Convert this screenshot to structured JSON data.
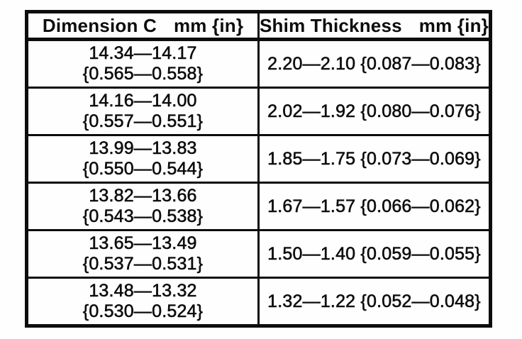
{
  "page": {
    "background": "#fefefe",
    "text_color": "#0d0d0d",
    "border_color": "#0d0d0d"
  },
  "table": {
    "headers": [
      {
        "label": "Dimension C",
        "unit": "mm {in}"
      },
      {
        "label": "Shim Thickness",
        "unit": "mm {in}"
      }
    ],
    "rows": [
      {
        "dimension_mm": "14.34—14.17",
        "dimension_in": "{0.565—0.558}",
        "shim": "2.20—2.10 {0.087—0.083}"
      },
      {
        "dimension_mm": "14.16—14.00",
        "dimension_in": "{0.557—0.551}",
        "shim": "2.02—1.92 {0.080—0.076}"
      },
      {
        "dimension_mm": "13.99—13.83",
        "dimension_in": "{0.550—0.544}",
        "shim": "1.85—1.75 {0.073—0.069}"
      },
      {
        "dimension_mm": "13.82—13.66",
        "dimension_in": "{0.543—0.538}",
        "shim": "1.67—1.57 {0.066—0.062}"
      },
      {
        "dimension_mm": "13.65—13.49",
        "dimension_in": "{0.537—0.531}",
        "shim": "1.50—1.40 {0.059—0.055}"
      },
      {
        "dimension_mm": "13.48—13.32",
        "dimension_in": "{0.530—0.524}",
        "shim": "1.32—1.22 {0.052—0.048}"
      }
    ]
  }
}
